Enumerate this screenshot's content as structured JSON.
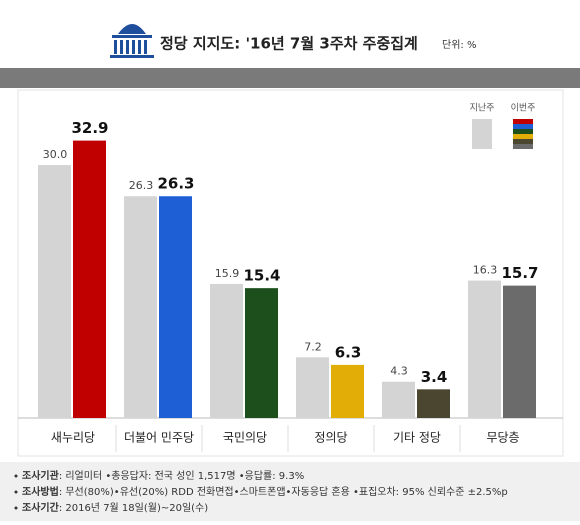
{
  "chart_data": {
    "type": "bar",
    "title": "정당 지지도: '16년 7월 3주차 주중집계",
    "subtitle": "단위: %",
    "categories": [
      "새누리당",
      "더불어 민주당",
      "국민의당",
      "정의당",
      "기타 정당",
      "무당층"
    ],
    "series": [
      {
        "name": "지난주",
        "color": "#d4d4d4",
        "values": [
          30.0,
          26.3,
          15.9,
          7.2,
          4.3,
          16.3
        ],
        "value_labels": [
          "30.0",
          "26.3",
          "15.9",
          "7.2",
          "4.3",
          "16.3"
        ]
      },
      {
        "name": "이번주",
        "colors": [
          "#c00000",
          "#1f5fd6",
          "#1d4f1d",
          "#e2ad06",
          "#4b4630",
          "#6b6b6b"
        ],
        "values": [
          32.9,
          26.3,
          15.4,
          6.3,
          3.4,
          15.7
        ]
      }
    ],
    "ylim": [
      0,
      33.8
    ]
  },
  "footer": [
    {
      "label": "조사기관",
      "text": ": 리얼미터 •총응답자: 전국 성인 1,517명 •응답률: 9.3%"
    },
    {
      "label": "조사방법",
      "text": ": 무선(80%)•유선(20%) RDD 전화면접•스마트폰앱•자동응답 혼용 •표집오차: 95% 신뢰수준 ±2.5%p"
    },
    {
      "label": "조사기간",
      "text": ": 2016년 7월 18일(월)~20일(수)"
    }
  ]
}
